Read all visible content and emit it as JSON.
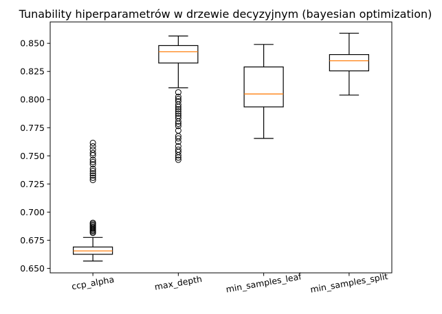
{
  "chart_data": {
    "type": "boxplot",
    "title": "Tunability hiperparametrów w drzewie decyzyjnym (bayesian optimization)",
    "xlabel": "",
    "ylabel": "",
    "categories": [
      "ccp_alpha",
      "max_depth",
      "min_samples_leaf",
      "min_samples_split"
    ],
    "ylim": [
      0.646,
      0.869
    ],
    "yticks": [
      0.65,
      0.675,
      0.7,
      0.725,
      0.75,
      0.775,
      0.8,
      0.825,
      0.85
    ],
    "ytick_labels": [
      "0.650",
      "0.675",
      "0.700",
      "0.725",
      "0.750",
      "0.775",
      "0.800",
      "0.825",
      "0.850"
    ],
    "grid": false,
    "colors": {
      "box": "#000000",
      "median": "#ff7f0e"
    },
    "boxes": [
      {
        "name": "ccp_alpha",
        "whislo": 0.6565,
        "q1": 0.6625,
        "med": 0.6655,
        "q3": 0.669,
        "whishi": 0.6775,
        "fliers": [
          0.6815,
          0.6825,
          0.6835,
          0.6845,
          0.6855,
          0.6865,
          0.6875,
          0.6885,
          0.6895,
          0.6905,
          0.7285,
          0.7305,
          0.7325,
          0.7345,
          0.7365,
          0.7385,
          0.7425,
          0.7445,
          0.7465,
          0.7505,
          0.7525,
          0.7555,
          0.7585,
          0.7615
        ]
      },
      {
        "name": "max_depth",
        "whislo": 0.8105,
        "q1": 0.8325,
        "med": 0.8425,
        "q3": 0.848,
        "whishi": 0.8565,
        "fliers": [
          0.7465,
          0.7485,
          0.7505,
          0.7535,
          0.7555,
          0.7585,
          0.7625,
          0.7655,
          0.7675,
          0.7725,
          0.7765,
          0.7785,
          0.7805,
          0.7835,
          0.7855,
          0.7875,
          0.7895,
          0.7915,
          0.7935,
          0.7955,
          0.7985,
          0.8005,
          0.8025,
          0.8065
        ]
      },
      {
        "name": "min_samples_leaf",
        "whislo": 0.7655,
        "q1": 0.7935,
        "med": 0.805,
        "q3": 0.829,
        "whishi": 0.849,
        "fliers": []
      },
      {
        "name": "min_samples_split",
        "whislo": 0.804,
        "q1": 0.8255,
        "med": 0.8345,
        "q3": 0.84,
        "whishi": 0.859,
        "fliers": []
      }
    ]
  }
}
